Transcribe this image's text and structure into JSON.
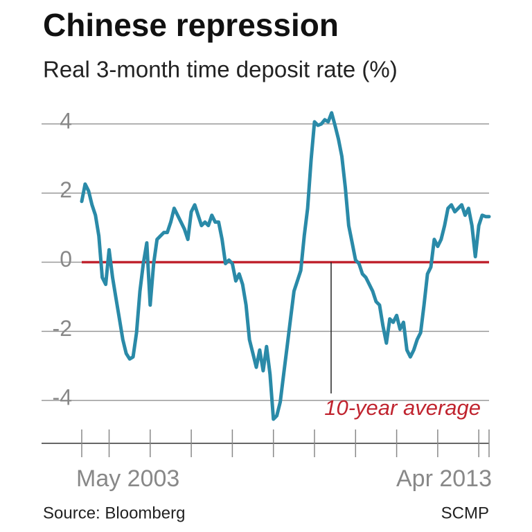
{
  "chart_data": {
    "type": "line",
    "title": "Chinese repression",
    "subtitle": "Real 3-month time deposit rate (%)",
    "categories": [
      "May 2003",
      null,
      null,
      null,
      null,
      null,
      null,
      null,
      null,
      null,
      null,
      null,
      null,
      null,
      null,
      null,
      null,
      null,
      null,
      null,
      null,
      null,
      null,
      null,
      null,
      null,
      null,
      null,
      null,
      null,
      null,
      null,
      null,
      null,
      null,
      null,
      null,
      null,
      null,
      null,
      null,
      null,
      null,
      null,
      null,
      null,
      null,
      null,
      null,
      null,
      null,
      null,
      null,
      null,
      null,
      null,
      null,
      null,
      null,
      null,
      null,
      null,
      null,
      null,
      null,
      null,
      null,
      null,
      null,
      null,
      null,
      null,
      null,
      null,
      null,
      null,
      null,
      null,
      null,
      null,
      null,
      null,
      null,
      null,
      null,
      null,
      null,
      null,
      null,
      null,
      null,
      null,
      null,
      null,
      null,
      null,
      null,
      null,
      null,
      null,
      null,
      null,
      null,
      null,
      null,
      null,
      null,
      null,
      null,
      null,
      null,
      null,
      null,
      null,
      null,
      null,
      null,
      null,
      null,
      "Apr 2013"
    ],
    "series": [
      {
        "name": "Real 3-month time deposit rate",
        "color": "#2a8aa8",
        "values": [
          1.76,
          2.26,
          2.06,
          1.66,
          1.36,
          0.76,
          -0.44,
          -0.64,
          0.36,
          -0.44,
          -1.04,
          -1.64,
          -2.24,
          -2.64,
          -2.8,
          -2.74,
          -2.04,
          -0.84,
          -0.04,
          0.56,
          -1.24,
          -0.04,
          0.66,
          0.76,
          0.86,
          0.86,
          1.16,
          1.56,
          1.36,
          1.16,
          0.96,
          0.66,
          1.46,
          1.66,
          1.36,
          1.06,
          1.16,
          1.06,
          1.36,
          1.16,
          1.16,
          0.66,
          -0.04,
          0.06,
          -0.04,
          -0.54,
          -0.34,
          -0.64,
          -1.24,
          -2.24,
          -2.64,
          -3.04,
          -2.54,
          -3.14,
          -2.44,
          -3.24,
          -4.54,
          -4.44,
          -4.04,
          -3.24,
          -2.44,
          -1.64,
          -0.84,
          -0.54,
          -0.24,
          0.76,
          1.56,
          2.96,
          4.06,
          3.96,
          4.0,
          4.12,
          4.06,
          4.32,
          3.96,
          3.56,
          3.06,
          2.16,
          1.06,
          0.56,
          0.06,
          -0.04,
          -0.34,
          -0.44,
          -0.64,
          -0.84,
          -1.14,
          -1.24,
          -1.84,
          -2.34,
          -1.64,
          -1.74,
          -1.54,
          -1.94,
          -1.74,
          -2.54,
          -2.74,
          -2.54,
          -2.24,
          -2.04,
          -1.24,
          -0.34,
          -0.14,
          0.66,
          0.46,
          0.66,
          1.06,
          1.56,
          1.66,
          1.46,
          1.56,
          1.66,
          1.36,
          1.56,
          1.06,
          0.16,
          1.06,
          1.36,
          1.32,
          1.32
        ]
      }
    ],
    "average": {
      "value": 0,
      "label": "10-year average",
      "color": "#c0242f"
    },
    "ylim": [
      -5.24,
      4.84
    ],
    "yticks": [
      4,
      2,
      0,
      -2,
      -4
    ],
    "grid": true,
    "source": "Source: Bloomberg",
    "credit": "SCMP"
  }
}
